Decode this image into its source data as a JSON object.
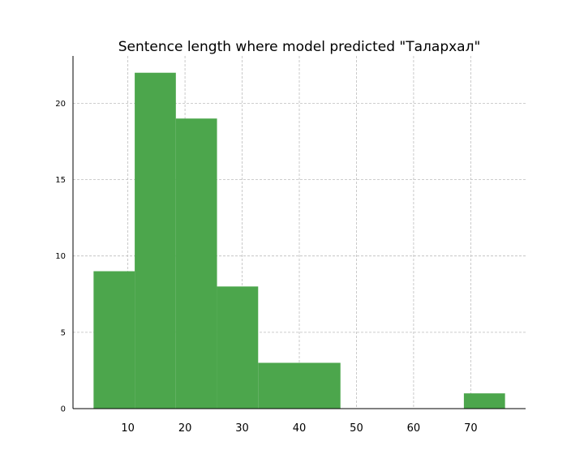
{
  "chart_data": {
    "type": "bar",
    "title": "Sentence length where model predicted \"Талархал\"",
    "xlabel": "",
    "ylabel": "",
    "bins": [
      {
        "x0": 4,
        "x1": 11.2,
        "count": 9
      },
      {
        "x0": 11.2,
        "x1": 18.4,
        "count": 22
      },
      {
        "x0": 18.4,
        "x1": 25.6,
        "count": 19
      },
      {
        "x0": 25.6,
        "x1": 32.8,
        "count": 8
      },
      {
        "x0": 32.8,
        "x1": 40.0,
        "count": 3
      },
      {
        "x0": 40.0,
        "x1": 47.2,
        "count": 3
      },
      {
        "x0": 47.2,
        "x1": 54.4,
        "count": 0
      },
      {
        "x0": 54.4,
        "x1": 61.6,
        "count": 0
      },
      {
        "x0": 61.6,
        "x1": 68.8,
        "count": 0
      },
      {
        "x0": 68.8,
        "x1": 76.0,
        "count": 1
      }
    ],
    "xlim": [
      0.4,
      79.6
    ],
    "ylim": [
      0,
      23.1
    ],
    "xticks": [
      "10",
      "20",
      "30",
      "40",
      "50",
      "60",
      "70"
    ],
    "yticks": [
      "0",
      "5",
      "10",
      "15",
      "20"
    ],
    "grid": true,
    "bar_color": "#4ca64c"
  }
}
